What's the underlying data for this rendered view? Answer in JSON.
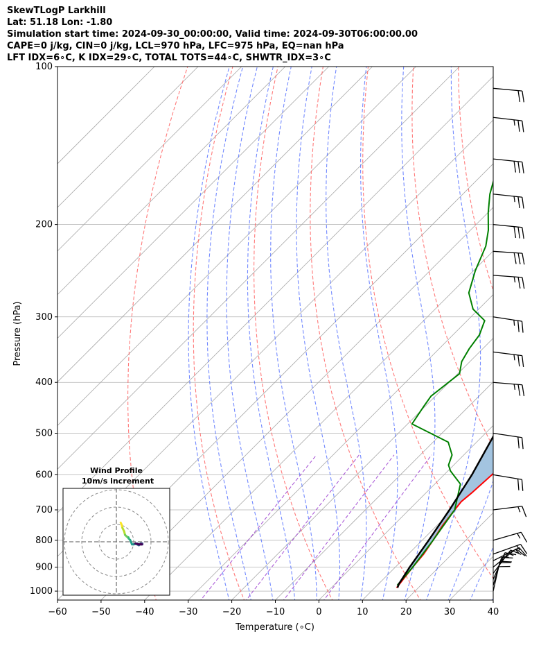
{
  "header": {
    "line1": "SkewTLogP Larkhill",
    "line2": "Lat: 51.18   Lon: -1.80",
    "line3": "Simulation start time: 2024-09-30_00:00:00, Valid time: 2024-09-30T06:00:00.00",
    "line4": "CAPE=0 j/kg, CIN=0 j/kg, LCL=970 hPa, LFC=975 hPa, EQ=nan hPa",
    "line5": "LFT IDX=6∘C, K IDX=29∘C, TOTAL TOTS=44∘C, SHWTR_IDX=3∘C"
  },
  "chart_data": {
    "type": "line",
    "xlabel": "Temperature (∘C)",
    "ylabel": "Pressure (hPa)",
    "xlim": [
      -60,
      40
    ],
    "ylim": [
      1040,
      100
    ],
    "y_scale": "log",
    "skew": true,
    "x_ticks": [
      -60,
      -50,
      -40,
      -30,
      -20,
      -10,
      0,
      10,
      20,
      30,
      40
    ],
    "y_ticks": [
      100,
      200,
      300,
      400,
      500,
      600,
      700,
      800,
      900,
      1000
    ],
    "grid": true,
    "series": [
      {
        "role": "temperature",
        "color": "#ff0000",
        "points": [
          [
            15.0,
            985
          ],
          [
            14.0,
            900
          ],
          [
            13.5,
            850
          ],
          [
            12.5,
            800
          ],
          [
            11.3,
            750
          ],
          [
            10.5,
            700
          ],
          [
            10.1,
            675
          ],
          [
            10.5,
            650
          ],
          [
            11.0,
            600
          ],
          [
            11.3,
            575
          ],
          [
            9.0,
            550
          ],
          [
            6.0,
            500
          ],
          [
            2.5,
            450
          ],
          [
            -1.9,
            400
          ],
          [
            -6.8,
            350
          ],
          [
            -10.4,
            320
          ],
          [
            -11.5,
            305
          ],
          [
            -13.1,
            290
          ],
          [
            -15.7,
            270
          ],
          [
            -18.3,
            250
          ],
          [
            -20.9,
            230
          ],
          [
            -23.5,
            210
          ],
          [
            -26.1,
            190
          ],
          [
            -29.6,
            170
          ],
          [
            -33.8,
            150
          ],
          [
            -37.2,
            130
          ],
          [
            -42.0,
            115
          ],
          [
            -45.0,
            100
          ]
        ]
      },
      {
        "role": "dewpoint",
        "color": "#008000",
        "points": [
          [
            14.6,
            975
          ],
          [
            14.0,
            900
          ],
          [
            12.5,
            800
          ],
          [
            10.5,
            700
          ],
          [
            8.1,
            660
          ],
          [
            5.9,
            625
          ],
          [
            0.6,
            590
          ],
          [
            -1.2,
            575
          ],
          [
            -2.7,
            550
          ],
          [
            -6.5,
            520
          ],
          [
            -19.0,
            480
          ],
          [
            -20.3,
            445
          ],
          [
            -21.0,
            425
          ],
          [
            -19.6,
            385
          ],
          [
            -21.9,
            365
          ],
          [
            -23.1,
            345
          ],
          [
            -23.9,
            325
          ],
          [
            -26.0,
            305
          ],
          [
            -31.3,
            290
          ],
          [
            -36.0,
            270
          ],
          [
            -39.6,
            245
          ],
          [
            -42.8,
            220
          ],
          [
            -45.9,
            205
          ],
          [
            -49.9,
            190
          ],
          [
            -53.8,
            175
          ],
          [
            -57.2,
            160
          ],
          [
            -60.1,
            140
          ],
          [
            -62.6,
            122
          ],
          [
            -64.5,
            108
          ],
          [
            -65.6,
            100
          ]
        ]
      },
      {
        "role": "parcel",
        "color": "#000000",
        "points": [
          [
            15.2,
            985
          ],
          [
            14.7,
            970
          ],
          [
            13.3,
            900
          ],
          [
            11.5,
            800
          ],
          [
            9.3,
            700
          ],
          [
            6.4,
            600
          ],
          [
            2.2,
            500
          ],
          [
            -3.9,
            400
          ],
          [
            -14.0,
            300
          ],
          [
            -31.5,
            200
          ],
          [
            -49.8,
            150
          ],
          [
            -75.0,
            100
          ]
        ]
      }
    ],
    "wind_barbs": [
      {
        "p": 1000,
        "u": -2.5,
        "v": -11.0
      },
      {
        "p": 975,
        "u": -3.0,
        "v": -10.0
      },
      {
        "p": 950,
        "u": -3.5,
        "v": -8.0
      },
      {
        "p": 925,
        "u": -4.5,
        "v": -6.0
      },
      {
        "p": 900,
        "u": -5.0,
        "v": -4.0
      },
      {
        "p": 875,
        "u": -6.0,
        "v": -3.0
      },
      {
        "p": 850,
        "u": -7.0,
        "v": -2.5
      },
      {
        "p": 800,
        "u": -7.0,
        "v": -2.0
      },
      {
        "p": 700,
        "u": -8.0,
        "v": -1.0
      },
      {
        "p": 600,
        "u": -9.0,
        "v": 1.5
      },
      {
        "p": 500,
        "u": -10.0,
        "v": 1.5
      },
      {
        "p": 400,
        "u": -12.0,
        "v": 1.0
      },
      {
        "p": 350,
        "u": -12.0,
        "v": 1.5
      },
      {
        "p": 300,
        "u": -13.0,
        "v": 2.0
      },
      {
        "p": 250,
        "u": -14.0,
        "v": 1.0
      },
      {
        "p": 225,
        "u": -15.0,
        "v": 1.0
      },
      {
        "p": 200,
        "u": -15.0,
        "v": 1.5
      },
      {
        "p": 175,
        "u": -14.0,
        "v": 1.5
      },
      {
        "p": 150,
        "u": -14.5,
        "v": 1.5
      },
      {
        "p": 125,
        "u": -13.0,
        "v": 1.5
      },
      {
        "p": 110,
        "u": -11.0,
        "v": 1.0
      }
    ],
    "inset": {
      "title": "Wind Profile",
      "subtitle": "10m/s increment",
      "type": "hodograph",
      "rings_ms": [
        10,
        20,
        30
      ],
      "points": [
        [
          -2.5,
          -11.0
        ],
        [
          -3.0,
          -10.0
        ],
        [
          -3.5,
          -8.0
        ],
        [
          -4.5,
          -6.0
        ],
        [
          -5.0,
          -4.0
        ],
        [
          -6.0,
          -3.0
        ],
        [
          -7.0,
          -2.5
        ],
        [
          -7.0,
          -2.0
        ],
        [
          -8.0,
          -1.0
        ],
        [
          -9.0,
          1.5
        ],
        [
          -10.0,
          1.5
        ],
        [
          -12.0,
          1.0
        ],
        [
          -12.0,
          1.5
        ],
        [
          -13.0,
          2.0
        ],
        [
          -14.0,
          1.0
        ],
        [
          -15.0,
          1.0
        ],
        [
          -15.0,
          1.5
        ],
        [
          -14.0,
          1.5
        ],
        [
          -14.5,
          1.5
        ],
        [
          -13.0,
          1.5
        ],
        [
          -11.0,
          1.0
        ]
      ]
    }
  }
}
